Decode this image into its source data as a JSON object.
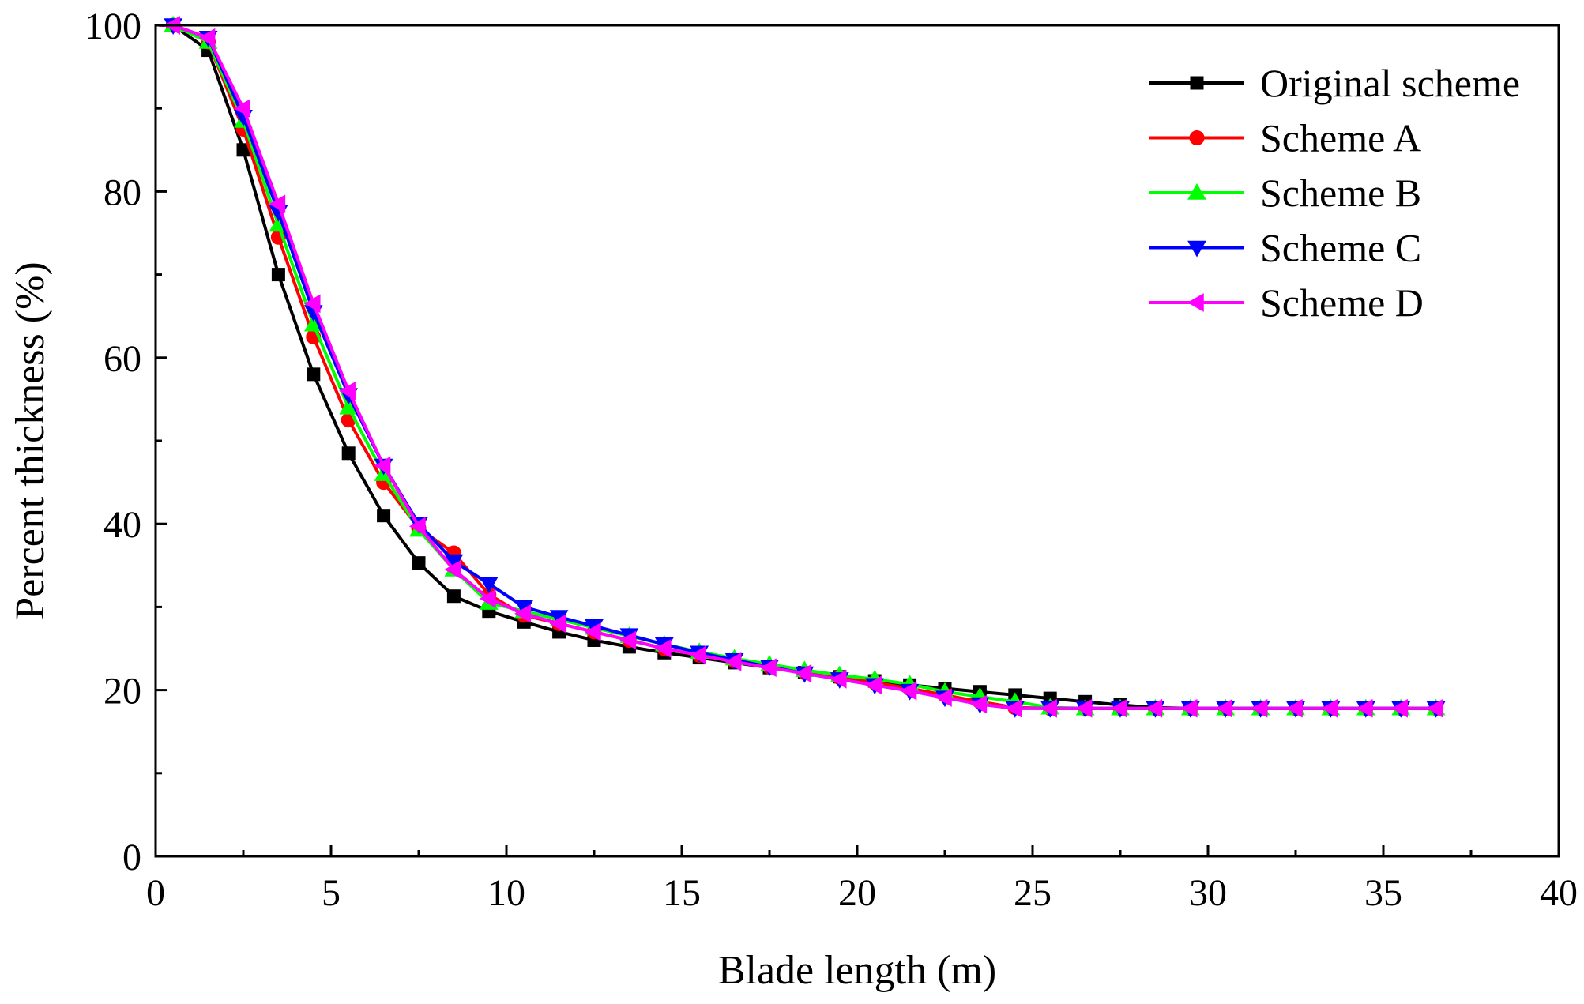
{
  "chart_data": {
    "type": "line",
    "title": "",
    "xlabel": "Blade length (m)",
    "ylabel": "Percent thickness (%)",
    "xlim": [
      0,
      40
    ],
    "ylim": [
      0,
      100
    ],
    "xticks": [
      0,
      5,
      10,
      15,
      20,
      25,
      30,
      35,
      40
    ],
    "yticks": [
      0,
      20,
      40,
      60,
      80,
      100
    ],
    "grid": false,
    "legend_position": "top-right",
    "x": [
      0.1,
      0.5,
      1.5,
      2.5,
      3.5,
      4.5,
      5.5,
      6.5,
      7.5,
      8.5,
      9.5,
      10.5,
      11.5,
      12.5,
      13.5,
      14.5,
      15.5,
      16.5,
      17.5,
      18.5,
      19.5,
      20.5,
      21.5,
      22.5,
      23.5,
      24.5,
      25.5,
      26.5,
      27.5,
      28.5,
      29.5,
      30.5,
      31.5,
      32.5,
      33.5,
      34.5,
      35.5,
      36.5
    ],
    "series": [
      {
        "name": "Original scheme",
        "color": "#000000",
        "marker": "square",
        "values": [
          100,
          100,
          97,
          85,
          70,
          58,
          48.5,
          41,
          35.3,
          31.3,
          29.5,
          28.2,
          27,
          26,
          25.2,
          24.5,
          23.9,
          23.3,
          22.7,
          22.1,
          21.6,
          21.1,
          20.6,
          20.2,
          19.8,
          19.4,
          19,
          18.6,
          18.2,
          17.9,
          17.8,
          17.8,
          17.8,
          17.8,
          17.8,
          17.8,
          17.8,
          17.8
        ]
      },
      {
        "name": "Scheme A",
        "color": "#ff0000",
        "marker": "circle",
        "values": [
          100,
          100,
          98,
          87.5,
          74.5,
          62.5,
          52.5,
          45,
          39.5,
          36.5,
          31.5,
          29,
          28,
          27,
          26,
          25,
          24.2,
          23.5,
          22.8,
          22.1,
          21.5,
          20.9,
          20.2,
          19.4,
          18.6,
          17.9,
          17.8,
          17.8,
          17.8,
          17.8,
          17.8,
          17.8,
          17.8,
          17.8,
          17.8,
          17.8,
          17.8,
          17.8
        ]
      },
      {
        "name": "Scheme B",
        "color": "#00ff00",
        "marker": "triangle-up",
        "values": [
          100,
          100,
          98,
          88.5,
          76,
          64,
          54,
          46,
          39.3,
          34.5,
          30.5,
          29.5,
          28.5,
          27.5,
          26.5,
          25.5,
          24.6,
          23.8,
          23.1,
          22.4,
          21.8,
          21.3,
          20.7,
          19.8,
          19.2,
          18.6,
          17.9,
          17.8,
          17.8,
          17.8,
          17.8,
          17.8,
          17.8,
          17.8,
          17.8,
          17.8,
          17.8,
          17.8
        ]
      },
      {
        "name": "Scheme C",
        "color": "#0000ff",
        "marker": "triangle-down",
        "values": [
          100,
          100,
          98.5,
          89,
          77.5,
          65.5,
          55.5,
          47,
          40,
          35.5,
          32.8,
          30,
          28.8,
          27.7,
          26.6,
          25.5,
          24.5,
          23.6,
          22.8,
          22,
          21.3,
          20.6,
          19.9,
          19.1,
          18.3,
          17.8,
          17.8,
          17.8,
          17.8,
          17.8,
          17.8,
          17.8,
          17.8,
          17.8,
          17.8,
          17.8,
          17.8,
          17.8
        ]
      },
      {
        "name": "Scheme D",
        "color": "#ff00ff",
        "marker": "triangle-left",
        "values": [
          100,
          100,
          98.5,
          90,
          78.5,
          66.5,
          56,
          47,
          39.7,
          34.5,
          31,
          29.2,
          28,
          27,
          26,
          25,
          24.2,
          23.4,
          22.7,
          22,
          21.3,
          20.6,
          19.9,
          19.1,
          18.3,
          17.8,
          17.8,
          17.8,
          17.8,
          17.8,
          17.8,
          17.8,
          17.8,
          17.8,
          17.8,
          17.8,
          17.8,
          17.8
        ]
      }
    ]
  }
}
